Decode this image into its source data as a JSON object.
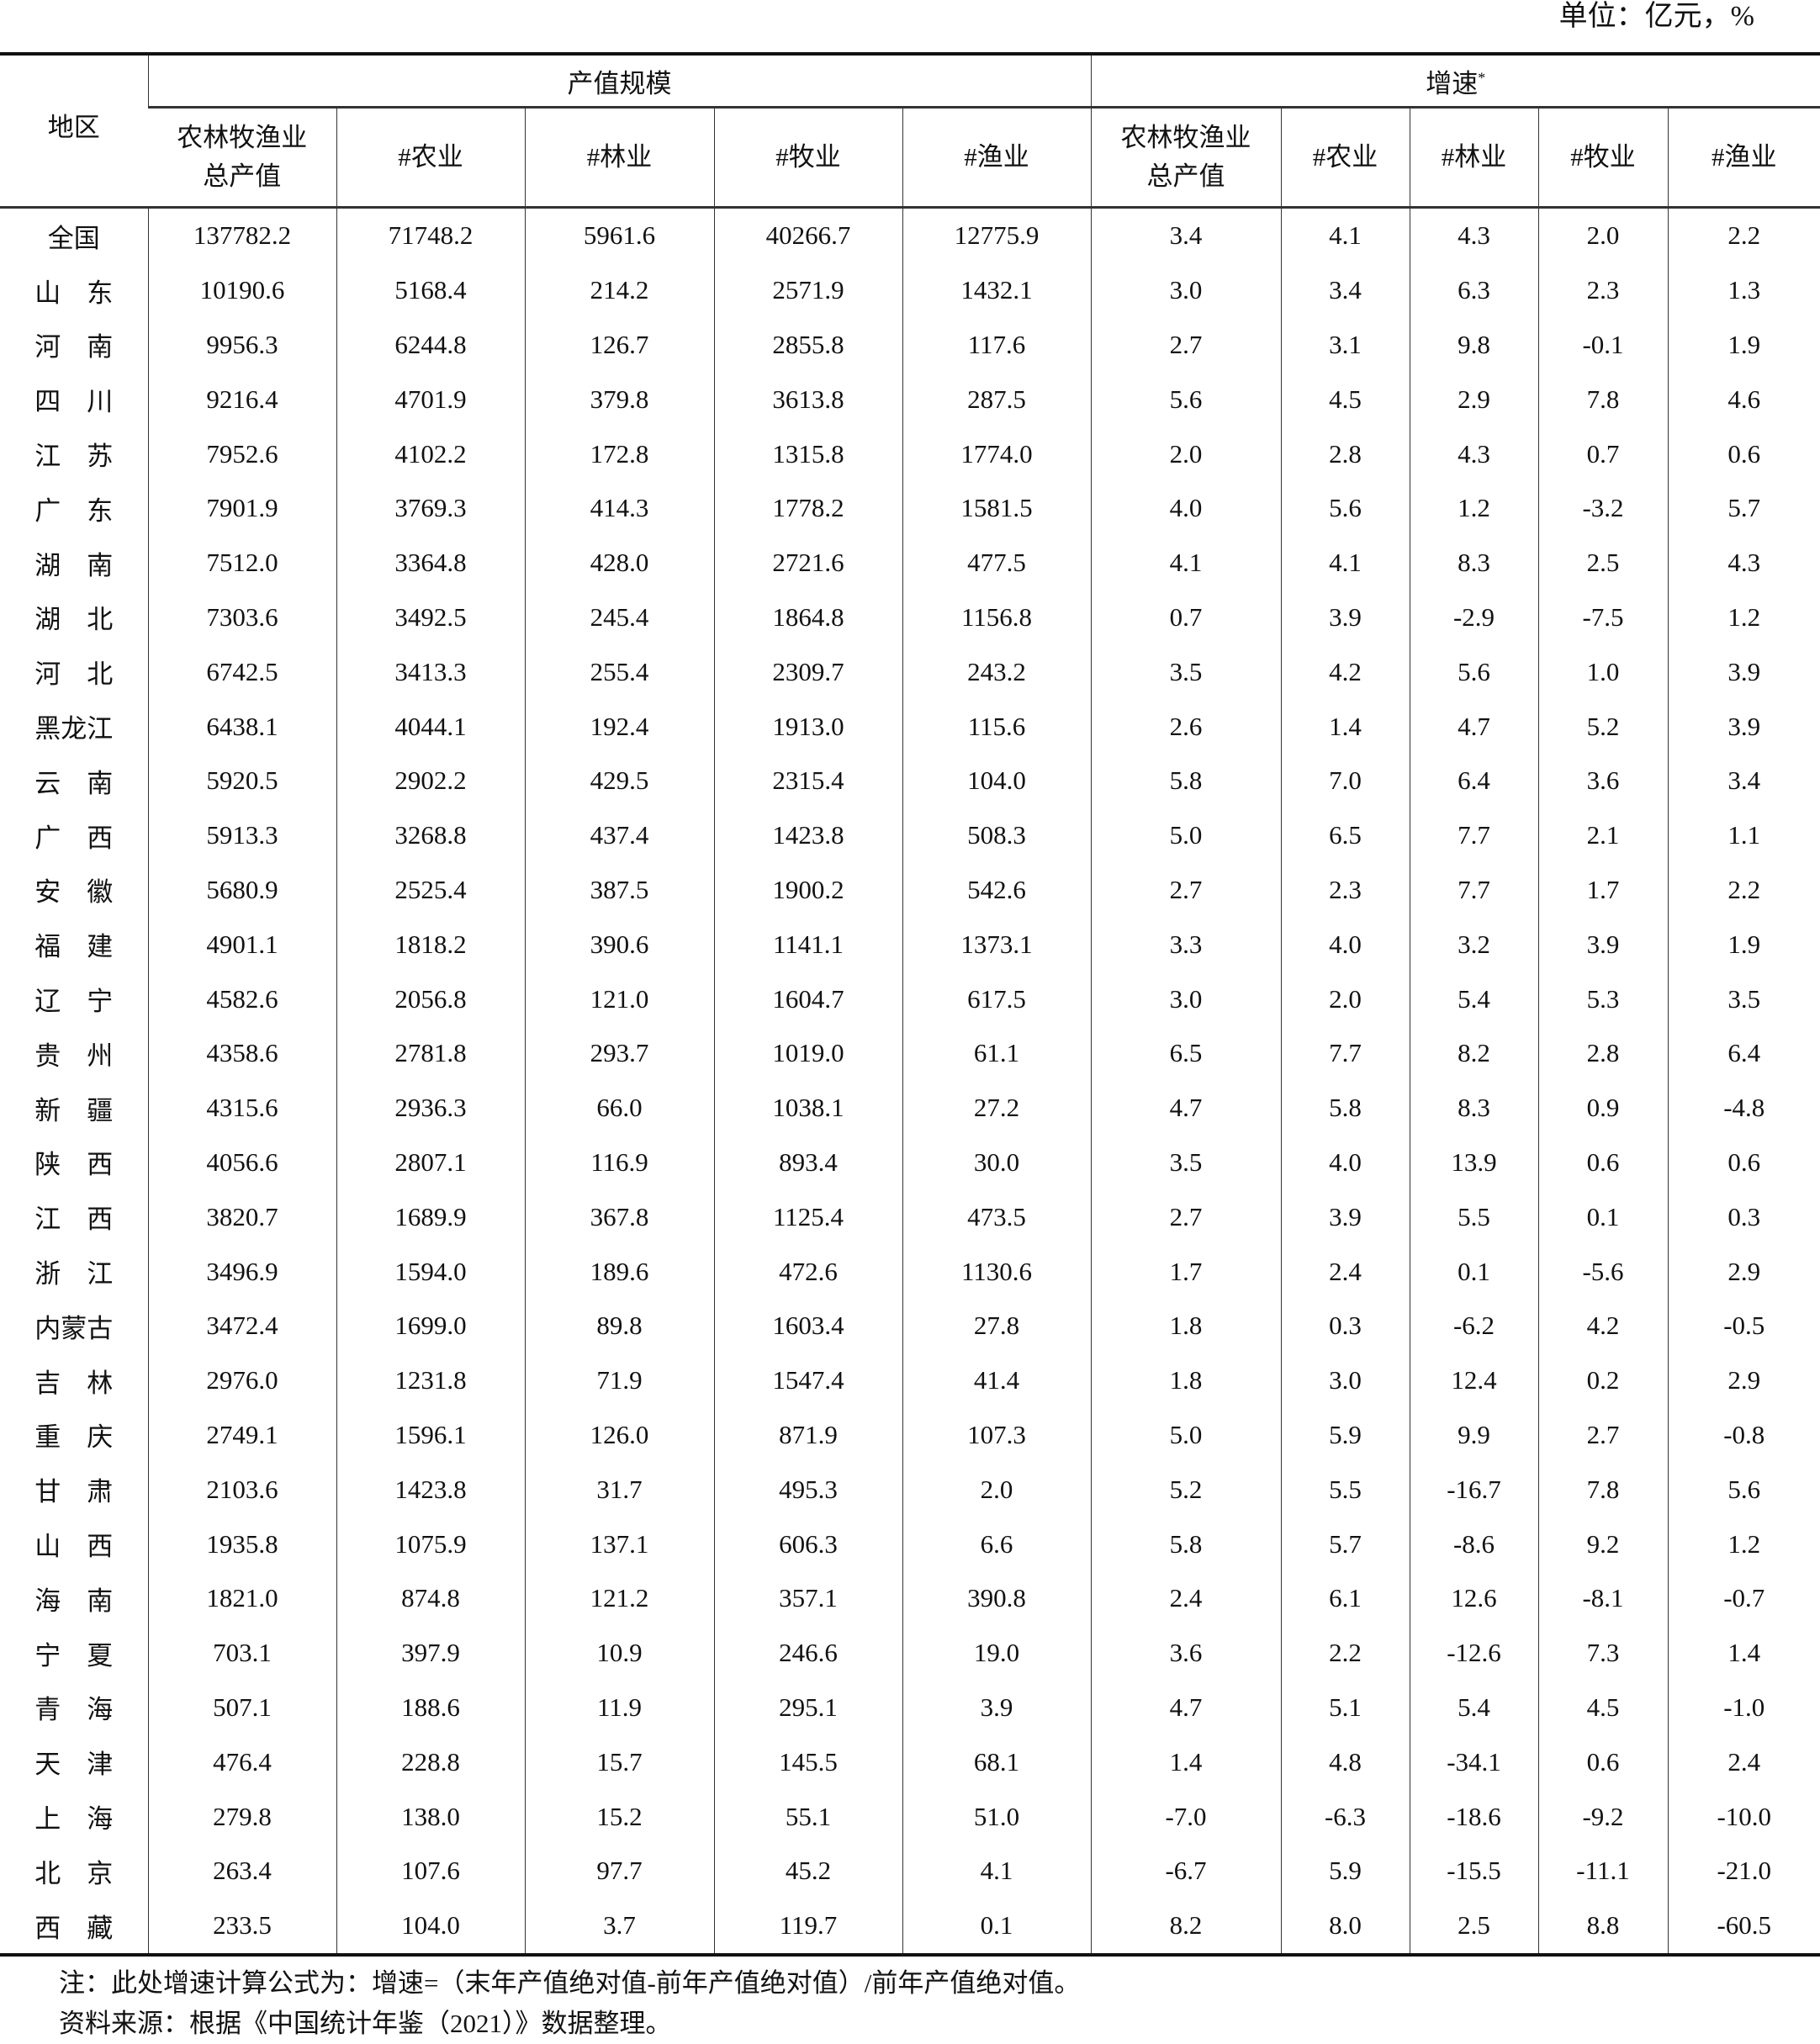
{
  "unit": "单位：亿元，%",
  "header": {
    "region": "地区",
    "group_scale": "产值规模",
    "group_growth": "增速",
    "growth_mark": "*",
    "cols": [
      "农林牧渔业总产值",
      "#农业",
      "#林业",
      "#牧业",
      "#渔业",
      "农林牧渔业总产值",
      "#农业",
      "#林业",
      "#牧业",
      "#渔业"
    ]
  },
  "rows": [
    [
      "全国",
      "137782.2",
      "71748.2",
      "5961.6",
      "40266.7",
      "12775.9",
      "3.4",
      "4.1",
      "4.3",
      "2.0",
      "2.2"
    ],
    [
      "山　东",
      "10190.6",
      "5168.4",
      "214.2",
      "2571.9",
      "1432.1",
      "3.0",
      "3.4",
      "6.3",
      "2.3",
      "1.3"
    ],
    [
      "河　南",
      "9956.3",
      "6244.8",
      "126.7",
      "2855.8",
      "117.6",
      "2.7",
      "3.1",
      "9.8",
      "-0.1",
      "1.9"
    ],
    [
      "四　川",
      "9216.4",
      "4701.9",
      "379.8",
      "3613.8",
      "287.5",
      "5.6",
      "4.5",
      "2.9",
      "7.8",
      "4.6"
    ],
    [
      "江　苏",
      "7952.6",
      "4102.2",
      "172.8",
      "1315.8",
      "1774.0",
      "2.0",
      "2.8",
      "4.3",
      "0.7",
      "0.6"
    ],
    [
      "广　东",
      "7901.9",
      "3769.3",
      "414.3",
      "1778.2",
      "1581.5",
      "4.0",
      "5.6",
      "1.2",
      "-3.2",
      "5.7"
    ],
    [
      "湖　南",
      "7512.0",
      "3364.8",
      "428.0",
      "2721.6",
      "477.5",
      "4.1",
      "4.1",
      "8.3",
      "2.5",
      "4.3"
    ],
    [
      "湖　北",
      "7303.6",
      "3492.5",
      "245.4",
      "1864.8",
      "1156.8",
      "0.7",
      "3.9",
      "-2.9",
      "-7.5",
      "1.2"
    ],
    [
      "河　北",
      "6742.5",
      "3413.3",
      "255.4",
      "2309.7",
      "243.2",
      "3.5",
      "4.2",
      "5.6",
      "1.0",
      "3.9"
    ],
    [
      "黑龙江",
      "6438.1",
      "4044.1",
      "192.4",
      "1913.0",
      "115.6",
      "2.6",
      "1.4",
      "4.7",
      "5.2",
      "3.9"
    ],
    [
      "云　南",
      "5920.5",
      "2902.2",
      "429.5",
      "2315.4",
      "104.0",
      "5.8",
      "7.0",
      "6.4",
      "3.6",
      "3.4"
    ],
    [
      "广　西",
      "5913.3",
      "3268.8",
      "437.4",
      "1423.8",
      "508.3",
      "5.0",
      "6.5",
      "7.7",
      "2.1",
      "1.1"
    ],
    [
      "安　徽",
      "5680.9",
      "2525.4",
      "387.5",
      "1900.2",
      "542.6",
      "2.7",
      "2.3",
      "7.7",
      "1.7",
      "2.2"
    ],
    [
      "福　建",
      "4901.1",
      "1818.2",
      "390.6",
      "1141.1",
      "1373.1",
      "3.3",
      "4.0",
      "3.2",
      "3.9",
      "1.9"
    ],
    [
      "辽　宁",
      "4582.6",
      "2056.8",
      "121.0",
      "1604.7",
      "617.5",
      "3.0",
      "2.0",
      "5.4",
      "5.3",
      "3.5"
    ],
    [
      "贵　州",
      "4358.6",
      "2781.8",
      "293.7",
      "1019.0",
      "61.1",
      "6.5",
      "7.7",
      "8.2",
      "2.8",
      "6.4"
    ],
    [
      "新　疆",
      "4315.6",
      "2936.3",
      "66.0",
      "1038.1",
      "27.2",
      "4.7",
      "5.8",
      "8.3",
      "0.9",
      "-4.8"
    ],
    [
      "陕　西",
      "4056.6",
      "2807.1",
      "116.9",
      "893.4",
      "30.0",
      "3.5",
      "4.0",
      "13.9",
      "0.6",
      "0.6"
    ],
    [
      "江　西",
      "3820.7",
      "1689.9",
      "367.8",
      "1125.4",
      "473.5",
      "2.7",
      "3.9",
      "5.5",
      "0.1",
      "0.3"
    ],
    [
      "浙　江",
      "3496.9",
      "1594.0",
      "189.6",
      "472.6",
      "1130.6",
      "1.7",
      "2.4",
      "0.1",
      "-5.6",
      "2.9"
    ],
    [
      "内蒙古",
      "3472.4",
      "1699.0",
      "89.8",
      "1603.4",
      "27.8",
      "1.8",
      "0.3",
      "-6.2",
      "4.2",
      "-0.5"
    ],
    [
      "吉　林",
      "2976.0",
      "1231.8",
      "71.9",
      "1547.4",
      "41.4",
      "1.8",
      "3.0",
      "12.4",
      "0.2",
      "2.9"
    ],
    [
      "重　庆",
      "2749.1",
      "1596.1",
      "126.0",
      "871.9",
      "107.3",
      "5.0",
      "5.9",
      "9.9",
      "2.7",
      "-0.8"
    ],
    [
      "甘　肃",
      "2103.6",
      "1423.8",
      "31.7",
      "495.3",
      "2.0",
      "5.2",
      "5.5",
      "-16.7",
      "7.8",
      "5.6"
    ],
    [
      "山　西",
      "1935.8",
      "1075.9",
      "137.1",
      "606.3",
      "6.6",
      "5.8",
      "5.7",
      "-8.6",
      "9.2",
      "1.2"
    ],
    [
      "海　南",
      "1821.0",
      "874.8",
      "121.2",
      "357.1",
      "390.8",
      "2.4",
      "6.1",
      "12.6",
      "-8.1",
      "-0.7"
    ],
    [
      "宁　夏",
      "703.1",
      "397.9",
      "10.9",
      "246.6",
      "19.0",
      "3.6",
      "2.2",
      "-12.6",
      "7.3",
      "1.4"
    ],
    [
      "青　海",
      "507.1",
      "188.6",
      "11.9",
      "295.1",
      "3.9",
      "4.7",
      "5.1",
      "5.4",
      "4.5",
      "-1.0"
    ],
    [
      "天　津",
      "476.4",
      "228.8",
      "15.7",
      "145.5",
      "68.1",
      "1.4",
      "4.8",
      "-34.1",
      "0.6",
      "2.4"
    ],
    [
      "上　海",
      "279.8",
      "138.0",
      "15.2",
      "55.1",
      "51.0",
      "-7.0",
      "-6.3",
      "-18.6",
      "-9.2",
      "-10.0"
    ],
    [
      "北　京",
      "263.4",
      "107.6",
      "97.7",
      "45.2",
      "4.1",
      "-6.7",
      "5.9",
      "-15.5",
      "-11.1",
      "-21.0"
    ],
    [
      "西　藏",
      "233.5",
      "104.0",
      "3.7",
      "119.7",
      "0.1",
      "8.2",
      "8.0",
      "2.5",
      "8.8",
      "-60.5"
    ]
  ],
  "notes": [
    "注：此处增速计算公式为：增速=（末年产值绝对值-前年产值绝对值）/前年产值绝对值。",
    "资料来源：根据《中国统计年鉴（2021）》数据整理。"
  ]
}
